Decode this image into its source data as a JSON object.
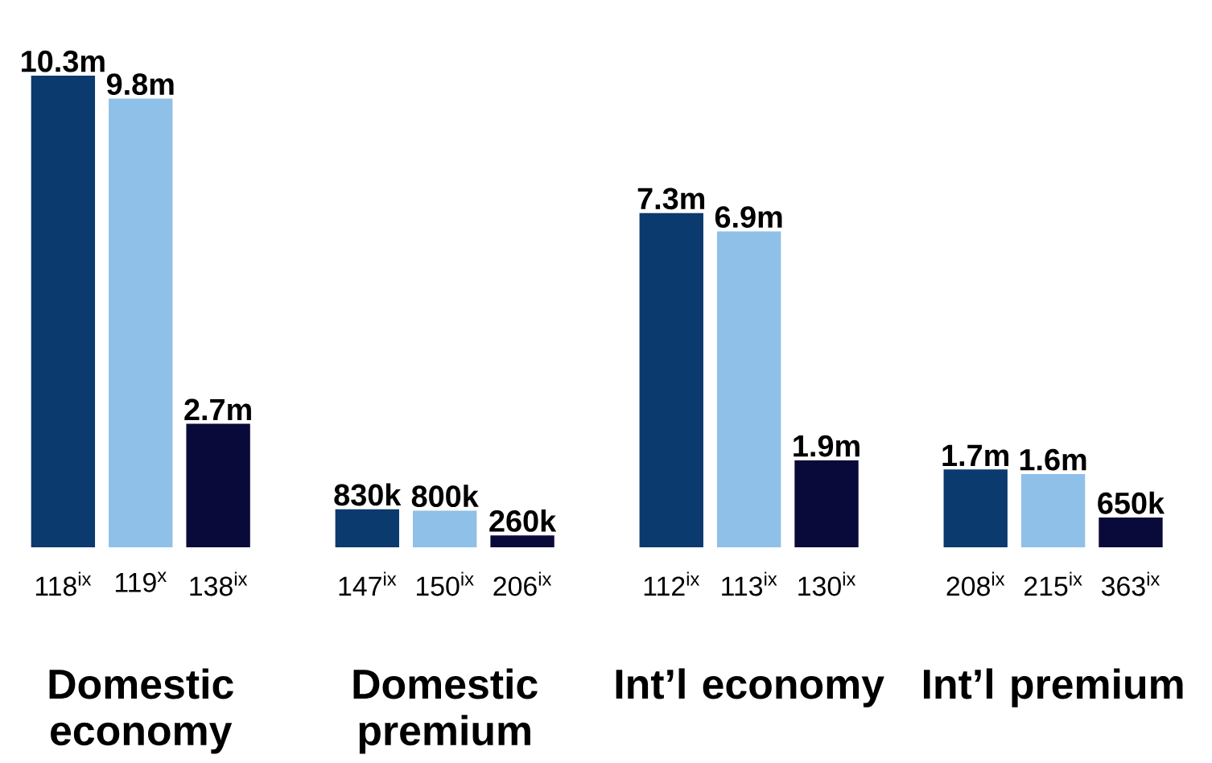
{
  "chart_data": {
    "type": "bar",
    "categories": [
      "Domestic economy",
      "Domestic premium",
      "Int’l economy",
      "Int’l premium"
    ],
    "series": [
      {
        "color": "#0b3a6e",
        "values": [
          10300000,
          830000,
          7300000,
          1700000
        ],
        "value_labels": [
          "10.3m",
          "830k",
          "7.3m",
          "1.7m"
        ]
      },
      {
        "color": "#8fc0e8",
        "values": [
          9800000,
          800000,
          6900000,
          1600000
        ],
        "value_labels": [
          "9.8m",
          "800k",
          "6.9m",
          "1.6m"
        ]
      },
      {
        "color": "#0a0a3a",
        "values": [
          2700000,
          260000,
          1900000,
          650000
        ],
        "value_labels": [
          "2.7m",
          "260k",
          "1.9m",
          "650k"
        ]
      }
    ],
    "annotations": [
      "118$^{ix}$",
      "119$^{x}$",
      "138$^{ix}$",
      "147$^{ix}$",
      "150$^{ix}$",
      "206$^{ix}$",
      "112$^{ix}$",
      "113$^{ix}$",
      "130$^{ix}$",
      "208$^{ix}$",
      "215$^{ix}$",
      "363$^{ix}$"
    ]
  }
}
